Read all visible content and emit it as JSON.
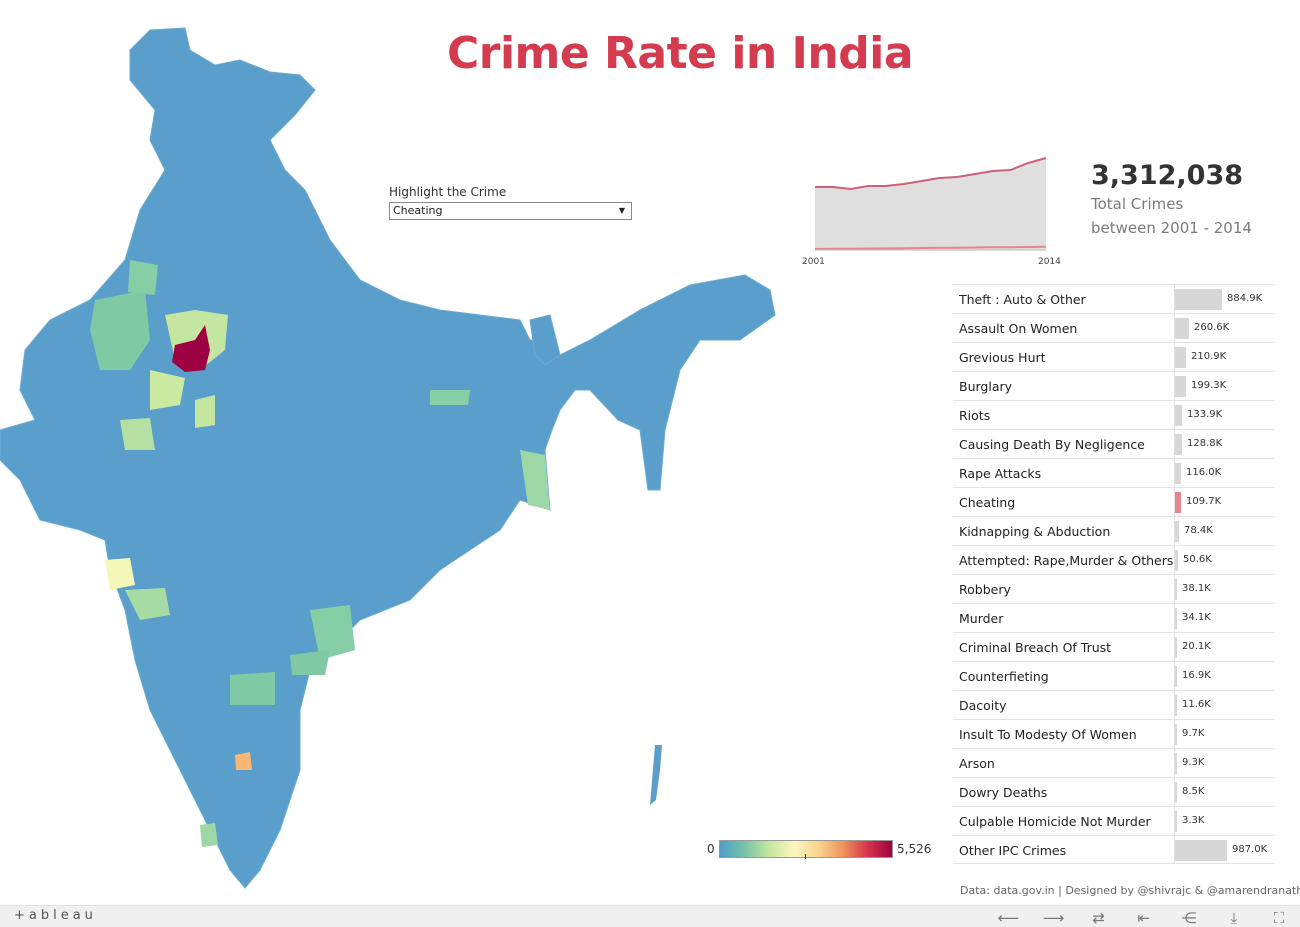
{
  "title": "Crime Rate in India",
  "filter": {
    "label": "Highlight the Crime",
    "selected": "Cheating"
  },
  "summary": {
    "total": "3,312,038",
    "line1": "Total Crimes",
    "line2": "between 2001 - 2014"
  },
  "trend": {
    "x_start_label": "2001",
    "x_end_label": "2014",
    "total_series_rel": [
      0.63,
      0.63,
      0.61,
      0.64,
      0.64,
      0.66,
      0.69,
      0.72,
      0.73,
      0.76,
      0.79,
      0.8,
      0.87,
      0.92
    ],
    "highlight_series_rel": [
      0.01,
      0.012,
      0.013,
      0.015,
      0.016,
      0.018,
      0.02,
      0.022,
      0.023,
      0.025,
      0.027,
      0.028,
      0.03,
      0.032
    ]
  },
  "crimes": [
    {
      "name": "Theft : Auto & Other",
      "value": 884.9,
      "label": "884.9K"
    },
    {
      "name": "Assault On Women",
      "value": 260.6,
      "label": "260.6K"
    },
    {
      "name": "Grevious Hurt",
      "value": 210.9,
      "label": "210.9K"
    },
    {
      "name": "Burglary",
      "value": 199.3,
      "label": "199.3K"
    },
    {
      "name": "Riots",
      "value": 133.9,
      "label": "133.9K"
    },
    {
      "name": "Causing Death By Negligence",
      "value": 128.8,
      "label": "128.8K"
    },
    {
      "name": "Rape Attacks",
      "value": 116.0,
      "label": "116.0K"
    },
    {
      "name": "Cheating",
      "value": 109.7,
      "label": "109.7K",
      "highlight": true
    },
    {
      "name": "Kidnapping & Abduction",
      "value": 78.4,
      "label": "78.4K"
    },
    {
      "name": "Attempted: Rape,Murder & Others",
      "value": 50.6,
      "label": "50.6K"
    },
    {
      "name": "Robbery",
      "value": 38.1,
      "label": "38.1K"
    },
    {
      "name": "Murder",
      "value": 34.1,
      "label": "34.1K"
    },
    {
      "name": "Criminal Breach Of Trust",
      "value": 20.1,
      "label": "20.1K"
    },
    {
      "name": "Counterfieting",
      "value": 16.9,
      "label": "16.9K"
    },
    {
      "name": "Dacoity",
      "value": 11.6,
      "label": "11.6K"
    },
    {
      "name": "Insult To Modesty Of Women",
      "value": 9.7,
      "label": "9.7K"
    },
    {
      "name": "Arson",
      "value": 9.3,
      "label": "9.3K"
    },
    {
      "name": "Dowry Deaths",
      "value": 8.5,
      "label": "8.5K"
    },
    {
      "name": "Culpable Homicide Not Murder",
      "value": 3.3,
      "label": "3.3K"
    },
    {
      "name": "Other IPC Crimes",
      "value": 987.0,
      "label": "987.0K"
    }
  ],
  "legend": {
    "min": "0",
    "max": "5,526"
  },
  "credits": "Data: data.gov.in   |  Designed by @shivrajc  &  @amarendranathc",
  "footer": {
    "logo": "+ableau"
  },
  "colors": {
    "title": "#d43b4f",
    "bar": "#d7d7d7",
    "bar_highlight": "#e5868f",
    "map_base": "#4f9ec7",
    "map_max": "#9e0142"
  }
}
